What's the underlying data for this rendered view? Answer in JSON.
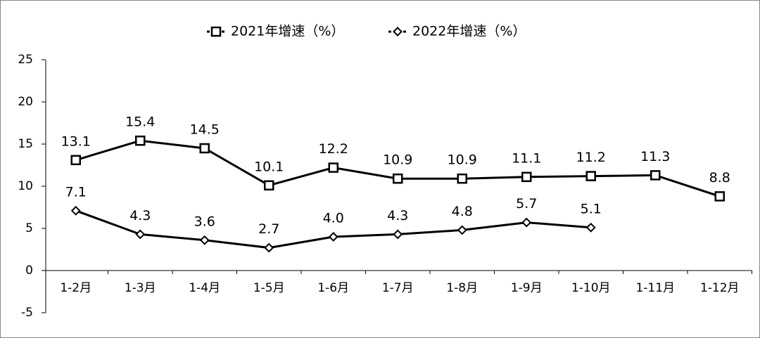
{
  "chart_data": {
    "type": "line",
    "categories": [
      "1-2月",
      "1-3月",
      "1-4月",
      "1-5月",
      "1-6月",
      "1-7月",
      "1-8月",
      "1-9月",
      "1-10月",
      "1-11月",
      "1-12月"
    ],
    "series": [
      {
        "name": "2021年增速（%）",
        "color": "#000000",
        "marker": "square",
        "values": [
          13.1,
          15.4,
          14.5,
          10.1,
          12.2,
          10.9,
          10.9,
          11.1,
          11.2,
          11.3,
          8.8
        ],
        "value_labels": [
          "13.1",
          "15.4",
          "14.5",
          "10.1",
          "12.2",
          "10.9",
          "10.9",
          "11.1",
          "11.2",
          "11.3",
          "8.8"
        ]
      },
      {
        "name": "2022年增速（%）",
        "color": "#000000",
        "marker": "diamond",
        "values": [
          7.1,
          4.3,
          3.6,
          2.7,
          4.0,
          4.3,
          4.8,
          5.7,
          5.1,
          null,
          null
        ],
        "value_labels": [
          "7.1",
          "4.3",
          "3.6",
          "2.7",
          "4.0",
          "4.3",
          "4.8",
          "5.7",
          "5.1",
          null,
          null
        ]
      }
    ],
    "ylim": [
      -5,
      25
    ],
    "yticks": [
      -5,
      0,
      5,
      10,
      15,
      20,
      25
    ],
    "legend": "top"
  }
}
